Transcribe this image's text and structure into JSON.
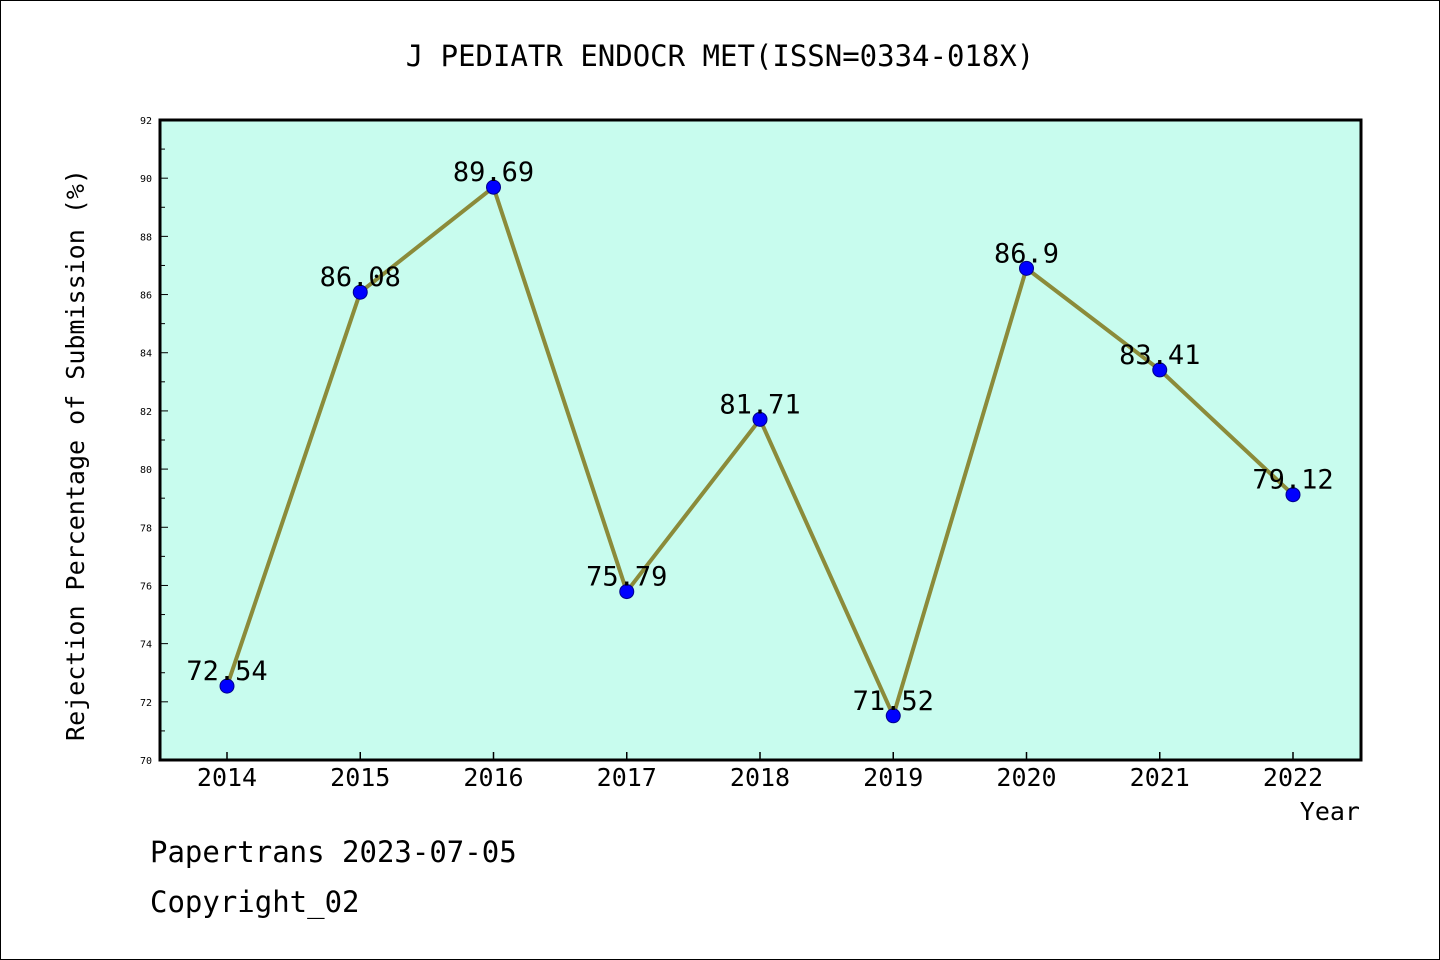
{
  "chart_data": {
    "type": "line",
    "title": "J PEDIATR ENDOCR MET(ISSN=0334-018X)",
    "xlabel": "Year",
    "ylabel": "Rejection Percentage of Submission (%)",
    "categories": [
      "2014",
      "2015",
      "2016",
      "2017",
      "2018",
      "2019",
      "2020",
      "2021",
      "2022"
    ],
    "series": [
      {
        "values": [
          72.54,
          86.08,
          89.69,
          75.79,
          81.71,
          71.52,
          86.9,
          83.41,
          79.12
        ]
      }
    ],
    "data_labels": [
      "72.54",
      "86.08",
      "89.69",
      "75.79",
      "81.71",
      "71.52",
      "86.9",
      "83.41",
      "79.12"
    ],
    "ylim": [
      70,
      92
    ],
    "yticks": [
      "70",
      "72",
      "74",
      "76",
      "78",
      "80",
      "82",
      "84",
      "86",
      "88",
      "90",
      "92"
    ],
    "grid": false,
    "legend": "none",
    "colors": {
      "plot_background": "#c8fcee",
      "line": "#8b8b3a",
      "marker": "#0000ff"
    }
  },
  "footer": {
    "line1": "Papertrans 2023-07-05",
    "line2": "Copyright_02"
  }
}
